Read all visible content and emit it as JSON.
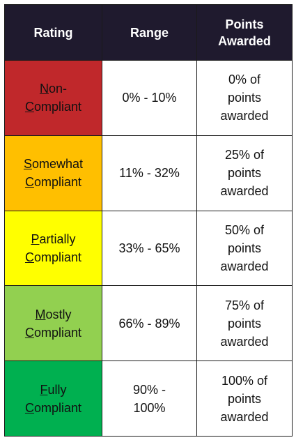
{
  "headers": [
    "Rating",
    "Range",
    "Points\nAwarded"
  ],
  "header_lines": {
    "rating": "Rating",
    "range": "Range",
    "points_line1": "Points",
    "points_line2": "Awarded"
  },
  "rows": [
    {
      "rating": {
        "first_letter_1": "N",
        "rest_1": "on-",
        "first_letter_2": "C",
        "rest_2": "ompliant"
      },
      "color": "#c0282b",
      "range_line1": "0% - 10%",
      "range_line2": "",
      "points_line1": "0% of",
      "points_line2": "points",
      "points_line3": "awarded"
    },
    {
      "rating": {
        "first_letter_1": "S",
        "rest_1": "omewhat",
        "first_letter_2": "C",
        "rest_2": "ompliant"
      },
      "color": "#ffbf00",
      "range_line1": "11% - 32%",
      "range_line2": "",
      "points_line1": "25% of",
      "points_line2": "points",
      "points_line3": "awarded"
    },
    {
      "rating": {
        "first_letter_1": "P",
        "rest_1": "artially",
        "first_letter_2": "C",
        "rest_2": "ompliant"
      },
      "color": "#ffff00",
      "range_line1": "33% - 65%",
      "range_line2": "",
      "points_line1": "50% of",
      "points_line2": "points",
      "points_line3": "awarded"
    },
    {
      "rating": {
        "first_letter_1": "M",
        "rest_1": "ostly",
        "first_letter_2": "C",
        "rest_2": "ompliant"
      },
      "color": "#92d050",
      "range_line1": "66% - 89%",
      "range_line2": "",
      "points_line1": "75% of",
      "points_line2": "points",
      "points_line3": "awarded"
    },
    {
      "rating": {
        "first_letter_1": "F",
        "rest_1": "ully",
        "first_letter_2": "C",
        "rest_2": "ompliant"
      },
      "color": "#00b050",
      "range_line1": "90% -",
      "range_line2": "100%",
      "points_line1": "100% of",
      "points_line2": "points",
      "points_line3": "awarded"
    }
  ]
}
